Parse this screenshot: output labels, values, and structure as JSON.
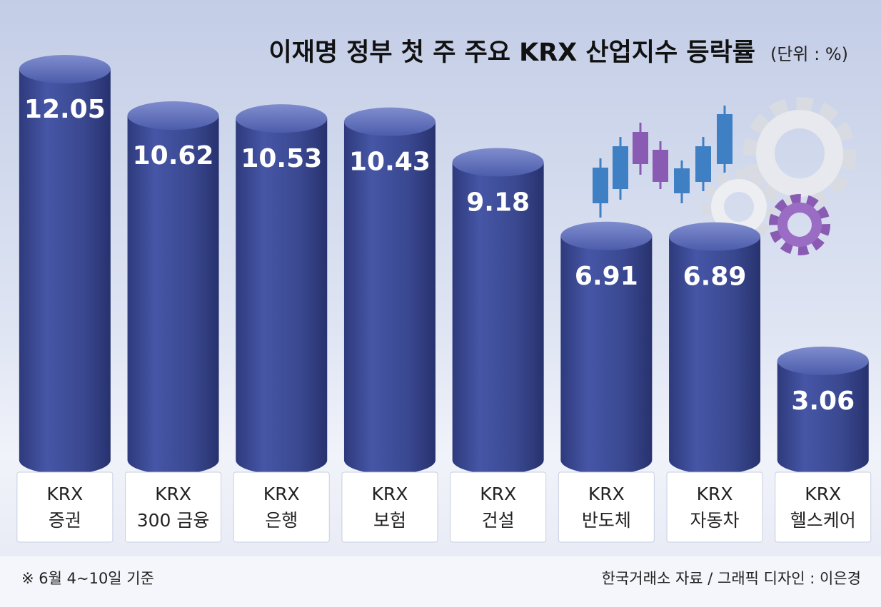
{
  "chart_data": {
    "type": "bar",
    "title": "이재명 정부 첫 주 주요 KRX 산업지수 등락률",
    "unit": "(단위 : %)",
    "categories": [
      [
        "KRX",
        "증권"
      ],
      [
        "KRX",
        "300 금융"
      ],
      [
        "KRX",
        "은행"
      ],
      [
        "KRX",
        "보험"
      ],
      [
        "KRX",
        "건설"
      ],
      [
        "KRX",
        "반도체"
      ],
      [
        "KRX",
        "자동차"
      ],
      [
        "KRX",
        "헬스케어"
      ]
    ],
    "values": [
      12.05,
      10.62,
      10.53,
      10.43,
      9.18,
      6.91,
      6.89,
      3.06
    ],
    "color": "#3d4c98",
    "footnote": "※ 6월 4~10일 기준",
    "source": "한국거래소 자료 / 그래픽 디자인 : 이은경"
  }
}
